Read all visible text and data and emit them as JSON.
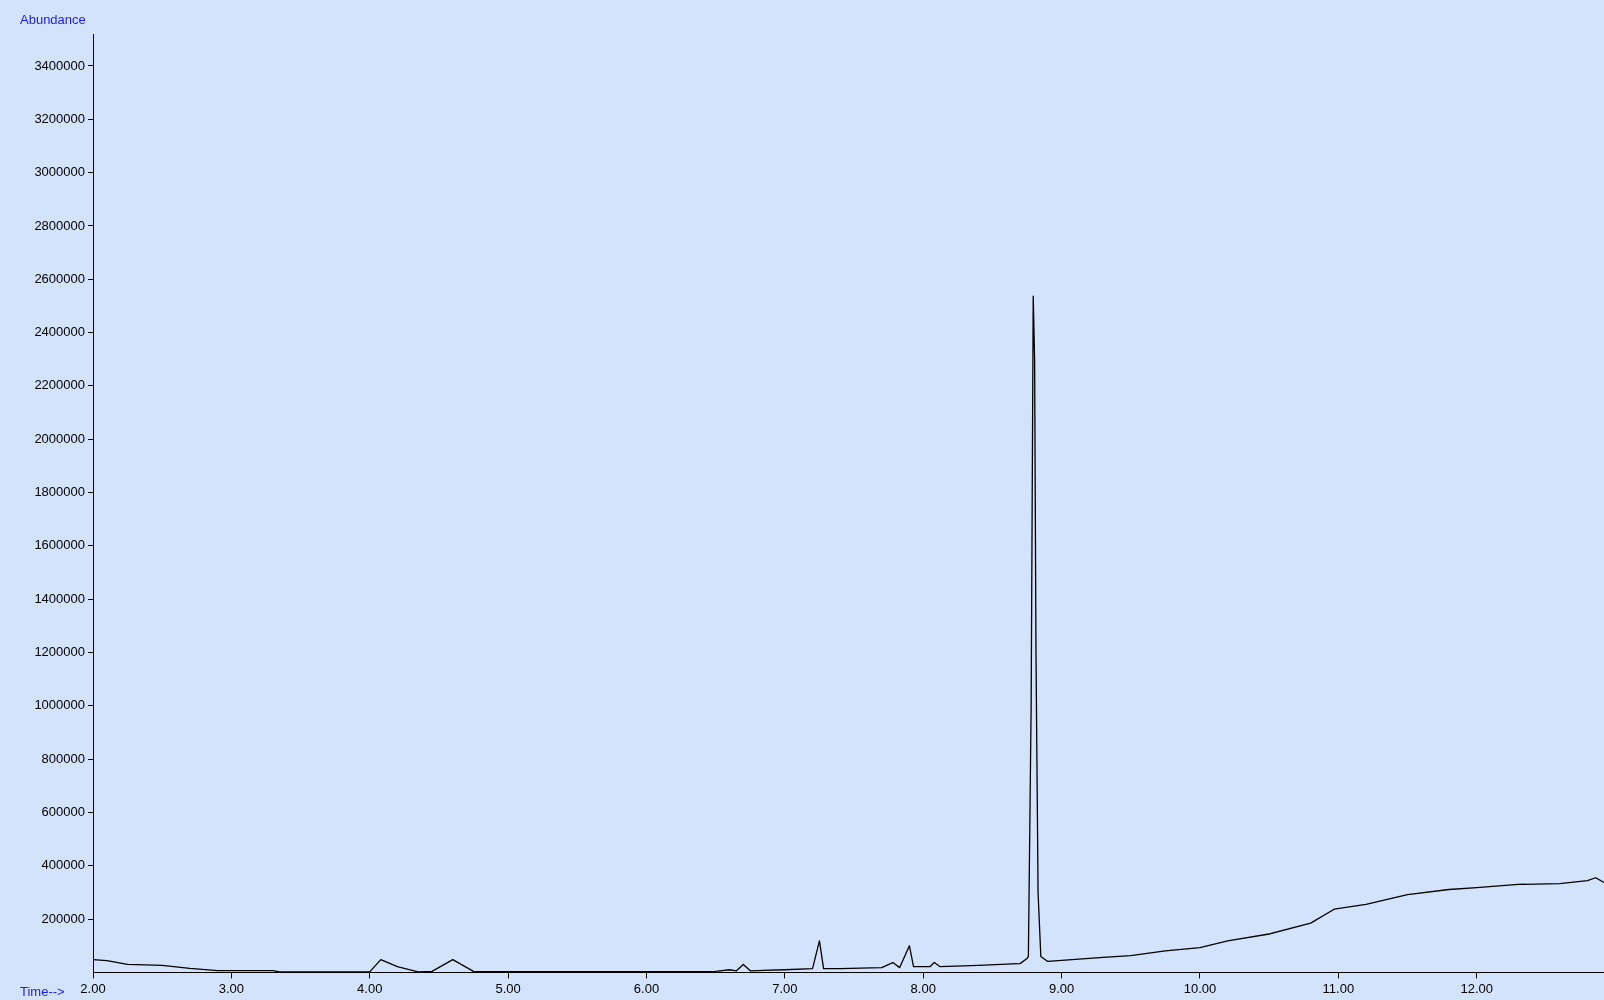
{
  "chart_data": {
    "type": "line",
    "xlabel": "Time-->",
    "ylabel": "Abundance",
    "x": [
      2.0,
      2.1,
      2.25,
      2.5,
      2.7,
      2.9,
      3.0,
      3.3,
      3.35,
      4.0,
      4.08,
      4.2,
      4.35,
      4.45,
      4.6,
      4.75,
      5.0,
      5.5,
      6.0,
      6.5,
      6.6,
      6.65,
      6.7,
      6.75,
      7.0,
      7.2,
      7.25,
      7.28,
      7.4,
      7.7,
      7.78,
      7.83,
      7.9,
      7.93,
      8.05,
      8.08,
      8.12,
      8.4,
      8.7,
      8.75,
      8.76,
      8.78,
      8.795,
      8.805,
      8.815,
      8.83,
      8.85,
      8.9,
      9.0,
      9.3,
      9.5,
      9.75,
      10.0,
      10.2,
      10.5,
      10.8,
      10.97,
      11.2,
      11.5,
      11.8,
      12.0,
      12.3,
      12.6,
      12.8,
      12.86,
      12.92
    ],
    "series": [
      {
        "color": "#000000",
        "values": [
          48000,
          44000,
          30000,
          26000,
          15000,
          7000,
          7000,
          7000,
          2000,
          2000,
          48000,
          22000,
          2000,
          4000,
          48000,
          4000,
          3000,
          3000,
          3000,
          4000,
          10000,
          6000,
          30000,
          6000,
          10000,
          14000,
          118000,
          14000,
          14000,
          18000,
          37000,
          18000,
          100000,
          22000,
          22000,
          37000,
          22000,
          26000,
          33000,
          52000,
          60000,
          1000000,
          2537000,
          2300000,
          1200000,
          300000,
          60000,
          41000,
          45000,
          56000,
          63000,
          81000,
          93000,
          118000,
          144000,
          185000,
          237000,
          255000,
          292000,
          311000,
          318000,
          330000,
          333000,
          344000,
          355000,
          337000
        ]
      }
    ],
    "xlim": [
      2,
      12.92
    ],
    "xticks": [
      {
        "value": 2,
        "label": "2.00"
      },
      {
        "value": 3,
        "label": "3.00"
      },
      {
        "value": 4,
        "label": "4.00"
      },
      {
        "value": 5,
        "label": "5.00"
      },
      {
        "value": 6,
        "label": "6.00"
      },
      {
        "value": 7,
        "label": "7.00"
      },
      {
        "value": 8,
        "label": "8.00"
      },
      {
        "value": 9,
        "label": "9.00"
      },
      {
        "value": 10,
        "label": "10.00"
      },
      {
        "value": 11,
        "label": "11.00"
      },
      {
        "value": 12,
        "label": "12.00"
      }
    ],
    "ylim": [
      0,
      3520000
    ],
    "yticks": [
      200000,
      400000,
      600000,
      800000,
      1000000,
      1200000,
      1400000,
      1600000,
      1800000,
      2000000,
      2200000,
      2400000,
      2600000,
      2800000,
      3000000,
      3200000,
      3400000
    ],
    "grid": false,
    "legend": false,
    "marker": "none",
    "line_style": "solid"
  }
}
